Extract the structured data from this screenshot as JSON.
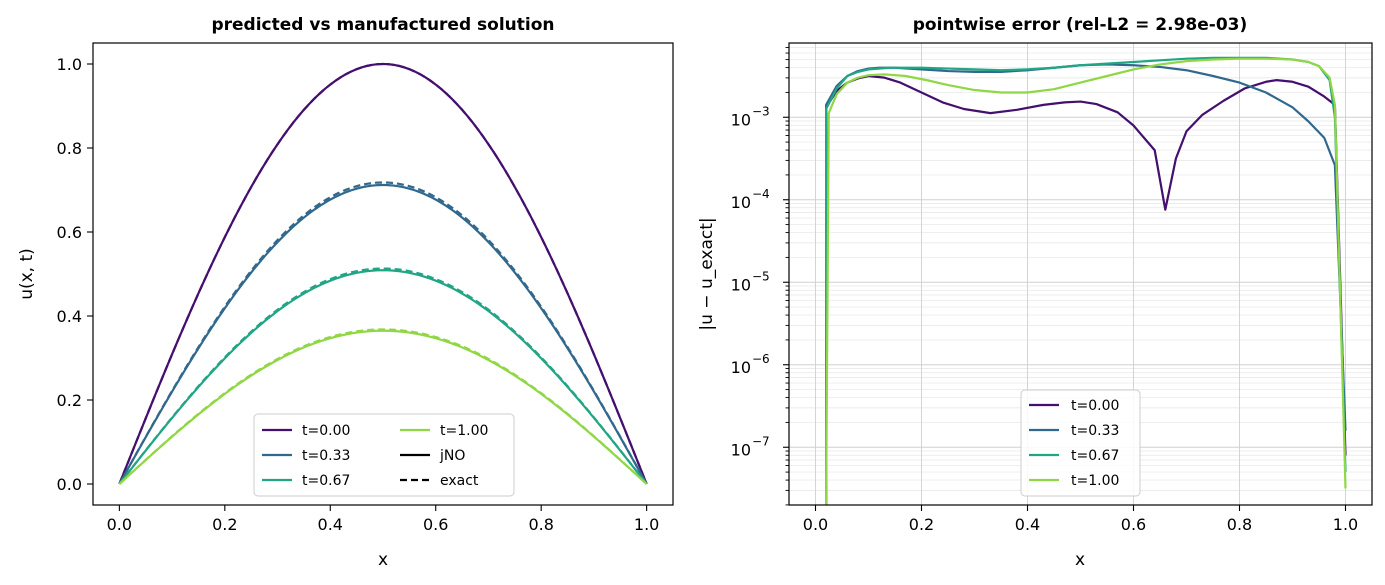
{
  "chart_data": [
    {
      "type": "line",
      "title": "predicted vs manufactured solution",
      "xlabel": "x",
      "ylabel": "u(x, t)",
      "xlim": [
        -0.05,
        1.05
      ],
      "ylim": [
        -0.05,
        1.05
      ],
      "xticks": [
        0.0,
        0.2,
        0.4,
        0.6,
        0.8,
        1.0
      ],
      "xtick_labels": [
        "0.0",
        "0.2",
        "0.4",
        "0.6",
        "0.8",
        "1.0"
      ],
      "yticks": [
        0.0,
        0.2,
        0.4,
        0.6,
        0.8,
        1.0
      ],
      "ytick_labels": [
        "0.0",
        "0.2",
        "0.4",
        "0.6",
        "0.8",
        "1.0"
      ],
      "grid": false,
      "legend_position": "lower-center",
      "legend_columns": 2,
      "series": [
        {
          "name": "t=0.00",
          "color": "#440f6e",
          "amplitude": 1.0,
          "exact_amplitude": 1.0
        },
        {
          "name": "t=0.33",
          "color": "#31688e",
          "amplitude": 0.712,
          "exact_amplitude": 0.718
        },
        {
          "name": "t=0.67",
          "color": "#21a585",
          "amplitude": 0.509,
          "exact_amplitude": 0.513
        },
        {
          "name": "t=1.00",
          "color": "#8fd744",
          "amplitude": 0.365,
          "exact_amplitude": 0.368
        }
      ],
      "style_legend": [
        {
          "name": "jNO",
          "dash": "solid"
        },
        {
          "name": "exact",
          "dash": "dashed"
        }
      ]
    },
    {
      "type": "line",
      "title": "pointwise error (rel-L2 = 2.98e-03)",
      "xlabel": "x",
      "ylabel": "|u − u_exact|",
      "xlim": [
        -0.05,
        1.05
      ],
      "ylim_log10": [
        -7.7,
        -2.1
      ],
      "yscale": "log",
      "xticks": [
        0.0,
        0.2,
        0.4,
        0.6,
        0.8,
        1.0
      ],
      "xtick_labels": [
        "0.0",
        "0.2",
        "0.4",
        "0.6",
        "0.8",
        "1.0"
      ],
      "yticks": [
        {
          "base": "10",
          "exp": "−3",
          "value": -3
        },
        {
          "base": "10",
          "exp": "−4",
          "value": -4
        },
        {
          "base": "10",
          "exp": "−5",
          "value": -5
        },
        {
          "base": "10",
          "exp": "−6",
          "value": -6
        },
        {
          "base": "10",
          "exp": "−7",
          "value": -7
        }
      ],
      "grid": true,
      "legend_position": "lower-center",
      "series": [
        {
          "name": "t=0.00",
          "color": "#440f6e",
          "x": [
            0.02,
            0.04,
            0.06,
            0.08,
            0.1,
            0.13,
            0.16,
            0.2,
            0.24,
            0.28,
            0.33,
            0.38,
            0.43,
            0.47,
            0.5,
            0.53,
            0.57,
            0.6,
            0.62,
            0.64,
            0.66,
            0.68,
            0.7,
            0.73,
            0.77,
            0.81,
            0.85,
            0.87,
            0.9,
            0.93,
            0.96,
            0.98,
            1.0
          ],
          "log10y": [
            -2.88,
            -2.68,
            -2.58,
            -2.53,
            -2.5,
            -2.52,
            -2.58,
            -2.7,
            -2.82,
            -2.9,
            -2.95,
            -2.91,
            -2.85,
            -2.82,
            -2.81,
            -2.84,
            -2.94,
            -3.1,
            -3.25,
            -3.4,
            -4.12,
            -3.5,
            -3.17,
            -2.97,
            -2.8,
            -2.65,
            -2.57,
            -2.55,
            -2.57,
            -2.63,
            -2.75,
            -2.85,
            -7.1
          ]
        },
        {
          "name": "t=0.33",
          "color": "#31688e",
          "x": [
            0.02,
            0.04,
            0.06,
            0.08,
            0.1,
            0.12,
            0.15,
            0.2,
            0.25,
            0.3,
            0.35,
            0.4,
            0.45,
            0.5,
            0.55,
            0.6,
            0.65,
            0.7,
            0.75,
            0.8,
            0.85,
            0.9,
            0.93,
            0.96,
            0.98,
            1.0
          ],
          "log10y": [
            -2.85,
            -2.62,
            -2.5,
            -2.44,
            -2.41,
            -2.4,
            -2.4,
            -2.42,
            -2.44,
            -2.45,
            -2.45,
            -2.43,
            -2.4,
            -2.37,
            -2.36,
            -2.37,
            -2.39,
            -2.43,
            -2.5,
            -2.58,
            -2.7,
            -2.88,
            -3.05,
            -3.25,
            -3.58,
            -6.8
          ]
        },
        {
          "name": "t=0.67",
          "color": "#21a585",
          "x": [
            0.02,
            0.04,
            0.06,
            0.08,
            0.1,
            0.14,
            0.2,
            0.25,
            0.3,
            0.35,
            0.4,
            0.45,
            0.5,
            0.55,
            0.6,
            0.65,
            0.7,
            0.75,
            0.8,
            0.85,
            0.9,
            0.93,
            0.95,
            0.97,
            0.98,
            1.0
          ],
          "log10y": [
            -2.9,
            -2.65,
            -2.5,
            -2.45,
            -2.42,
            -2.4,
            -2.4,
            -2.41,
            -2.42,
            -2.43,
            -2.42,
            -2.4,
            -2.37,
            -2.35,
            -2.33,
            -2.31,
            -2.29,
            -2.28,
            -2.28,
            -2.28,
            -2.3,
            -2.33,
            -2.38,
            -2.55,
            -3.0,
            -7.3
          ]
        },
        {
          "name": "t=1.00",
          "color": "#8fd744",
          "x": [
            0.02,
            0.025,
            0.04,
            0.06,
            0.08,
            0.1,
            0.13,
            0.17,
            0.21,
            0.25,
            0.3,
            0.35,
            0.4,
            0.45,
            0.5,
            0.55,
            0.6,
            0.65,
            0.7,
            0.75,
            0.8,
            0.85,
            0.9,
            0.93,
            0.95,
            0.97,
            0.98,
            1.0
          ],
          "log10y": [
            -7.9,
            -2.95,
            -2.72,
            -2.58,
            -2.52,
            -2.49,
            -2.48,
            -2.5,
            -2.55,
            -2.61,
            -2.67,
            -2.7,
            -2.7,
            -2.66,
            -2.58,
            -2.5,
            -2.42,
            -2.36,
            -2.32,
            -2.3,
            -2.29,
            -2.29,
            -2.3,
            -2.33,
            -2.38,
            -2.52,
            -2.85,
            -7.5
          ]
        }
      ]
    }
  ]
}
